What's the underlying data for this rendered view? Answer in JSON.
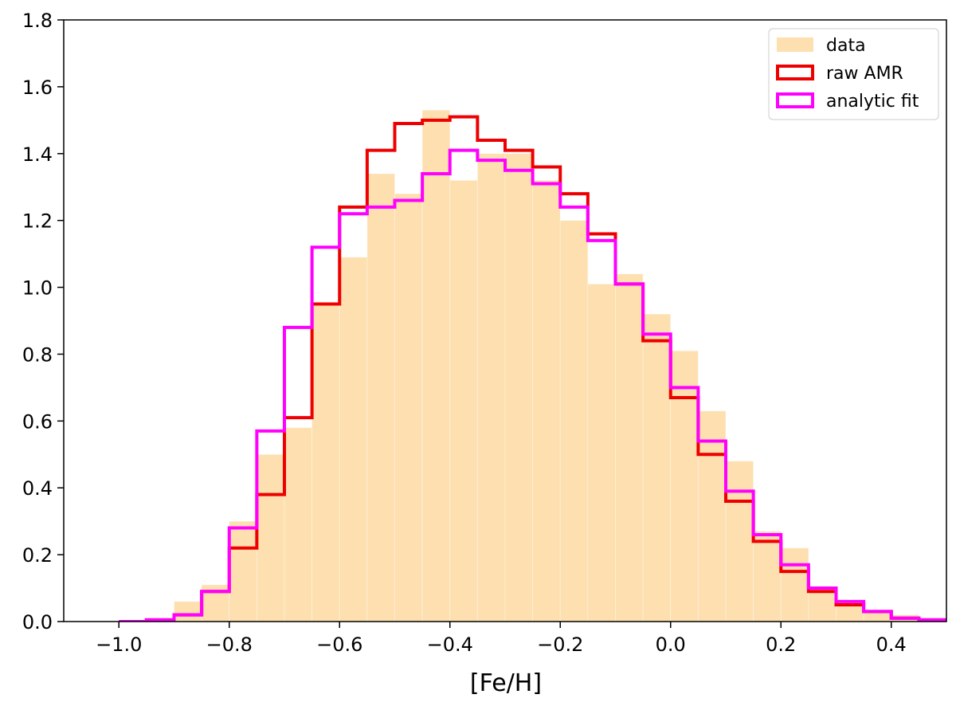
{
  "chart_data": {
    "type": "bar",
    "title": "",
    "xlabel": "[Fe/H]",
    "ylabel": "",
    "xlim": [
      -1.1,
      0.5
    ],
    "ylim": [
      0,
      1.8
    ],
    "grid": false,
    "legend_position": "top-right",
    "xticks": [
      -1.0,
      -0.8,
      -0.6,
      -0.4,
      -0.2,
      0.0,
      0.2,
      0.4
    ],
    "xtick_labels": [
      "−1.0",
      "−0.8",
      "−0.6",
      "−0.4",
      "−0.2",
      "0.0",
      "0.2",
      "0.4"
    ],
    "yticks": [
      0.0,
      0.2,
      0.4,
      0.6,
      0.8,
      1.0,
      1.2,
      1.4,
      1.6,
      1.8
    ],
    "ytick_labels": [
      "0.0",
      "0.2",
      "0.4",
      "0.6",
      "0.8",
      "1.0",
      "1.2",
      "1.4",
      "1.6",
      "1.8"
    ],
    "bin_edges": [
      -1.0,
      -0.95,
      -0.9,
      -0.85,
      -0.8,
      -0.75,
      -0.7,
      -0.65,
      -0.6,
      -0.55,
      -0.5,
      -0.45,
      -0.4,
      -0.35,
      -0.3,
      -0.25,
      -0.2,
      -0.15,
      -0.1,
      -0.05,
      0.0,
      0.05,
      0.1,
      0.15,
      0.2,
      0.25,
      0.3,
      0.35,
      0.4,
      0.45,
      0.5
    ],
    "series": [
      {
        "name": "data",
        "style": "filled",
        "color": "#fddfb0",
        "values": [
          0.0,
          0.01,
          0.06,
          0.11,
          0.3,
          0.5,
          0.58,
          0.95,
          1.09,
          1.34,
          1.28,
          1.53,
          1.32,
          1.4,
          1.4,
          1.32,
          1.2,
          1.01,
          1.04,
          0.92,
          0.81,
          0.63,
          0.48,
          0.27,
          0.22,
          0.1,
          0.05,
          0.03,
          0.02,
          0.01
        ]
      },
      {
        "name": "raw AMR",
        "style": "step",
        "color": "#ee0000",
        "values": [
          0.0,
          0.005,
          0.02,
          0.09,
          0.22,
          0.38,
          0.61,
          0.95,
          1.24,
          1.41,
          1.49,
          1.5,
          1.51,
          1.44,
          1.41,
          1.36,
          1.28,
          1.16,
          1.01,
          0.84,
          0.67,
          0.5,
          0.36,
          0.24,
          0.15,
          0.09,
          0.05,
          0.03,
          0.01,
          0.005
        ]
      },
      {
        "name": "analytic fit",
        "style": "step",
        "color": "#ff00ff",
        "values": [
          0.0,
          0.005,
          0.02,
          0.09,
          0.28,
          0.57,
          0.88,
          1.12,
          1.22,
          1.24,
          1.26,
          1.34,
          1.41,
          1.38,
          1.35,
          1.31,
          1.24,
          1.14,
          1.01,
          0.86,
          0.7,
          0.54,
          0.39,
          0.26,
          0.17,
          0.1,
          0.06,
          0.03,
          0.01,
          0.005
        ]
      }
    ]
  }
}
